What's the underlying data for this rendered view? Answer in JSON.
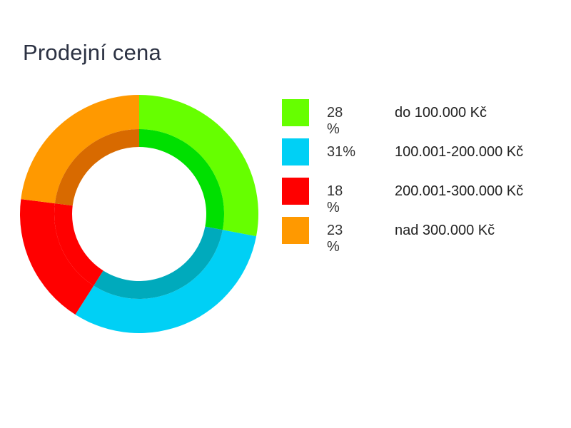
{
  "chart_data": {
    "type": "pie",
    "title": "Prodejní cena",
    "slices": [
      {
        "value_label": "28 %",
        "value": 28,
        "label": "do 100.000 Kč",
        "color": "#66ff00",
        "inner_color": "#00e000"
      },
      {
        "value_label": "31%",
        "value": 31,
        "label": "100.001-200.000 Kč",
        "color": "#00d0f5",
        "inner_color": "#00aabc"
      },
      {
        "value_label": "18 %",
        "value": 18,
        "label": "200.001-300.000 Kč",
        "color": "#ff0000",
        "inner_color": "#ff0000"
      },
      {
        "value_label": "23 %",
        "value": 23,
        "label": "nad 300.000 Kč",
        "color": "#ff9900",
        "inner_color": "#d86a00"
      }
    ],
    "legend_position": "right"
  }
}
